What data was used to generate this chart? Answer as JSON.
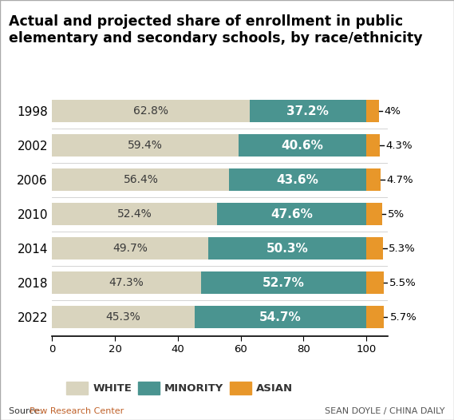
{
  "title": "Actual and projected share of enrollment in public\nelementary and secondary schools, by race/ethnicity",
  "years": [
    "1998",
    "2002",
    "2006",
    "2010",
    "2014",
    "2018",
    "2022"
  ],
  "white": [
    62.8,
    59.4,
    56.4,
    52.4,
    49.7,
    47.3,
    45.3
  ],
  "minority": [
    37.2,
    40.6,
    43.6,
    47.6,
    50.3,
    52.7,
    54.7
  ],
  "asian": [
    4.0,
    4.3,
    4.7,
    5.0,
    5.3,
    5.5,
    5.7
  ],
  "asian_labels": [
    "4%",
    "4.3%",
    "4.7%",
    "5%",
    "5.3%",
    "5.5%",
    "5.7%"
  ],
  "white_color": "#d9d4be",
  "minority_color": "#4a9490",
  "asian_color": "#e8972a",
  "title_fontsize": 12.5,
  "bar_label_fontsize": 10,
  "year_fontsize": 11,
  "source_text": "Source: ",
  "source_link": "Pew Research Center",
  "credit_text": "SEAN DOYLE / CHINA DAILY",
  "legend_labels": [
    "WHITE",
    "MINORITY",
    "ASIAN"
  ],
  "xlim": [
    0,
    107
  ],
  "xticks": [
    0,
    20,
    40,
    60,
    80,
    100
  ],
  "background_color": "#ffffff",
  "border_color": "#cccccc"
}
